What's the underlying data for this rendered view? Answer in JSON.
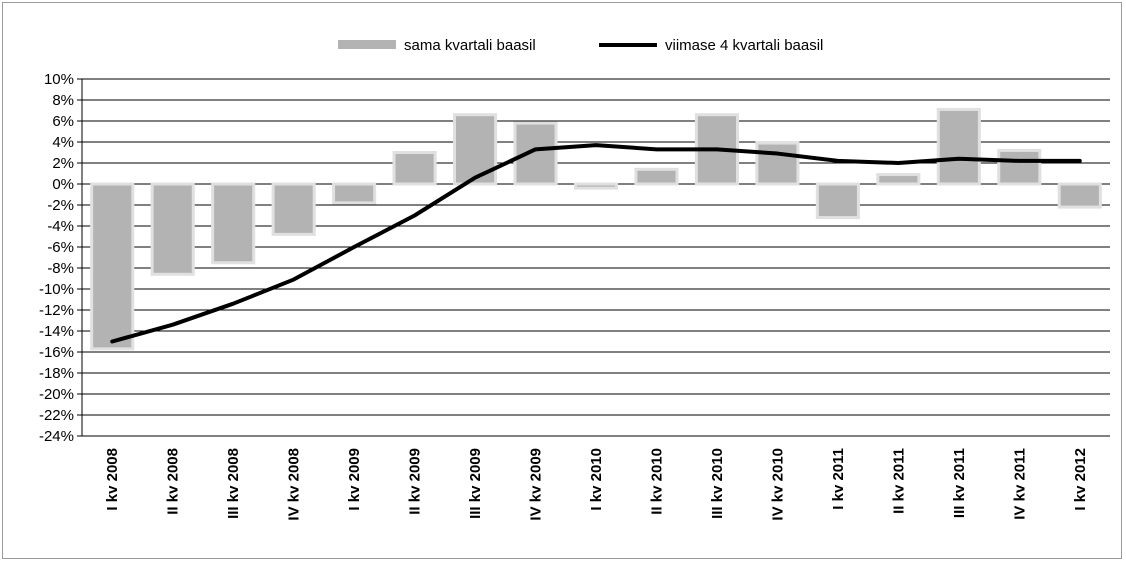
{
  "chart_data": {
    "type": "bar",
    "title": "",
    "xlabel": "",
    "ylabel": "",
    "ylim": [
      -24,
      10
    ],
    "y_ticks": [
      10,
      8,
      6,
      4,
      2,
      0,
      -2,
      -4,
      -6,
      -8,
      -10,
      -12,
      -14,
      -16,
      -18,
      -20,
      -22,
      -24
    ],
    "y_tick_format": "%",
    "grid": true,
    "legend_position": "top",
    "categories": [
      "I kv 2008",
      "II kv 2008",
      "III kv 2008",
      "IV kv 2008",
      "I kv 2009",
      "II kv 2009",
      "III kv 2009",
      "IV kv 2009",
      "I kv 2010",
      "II kv 2010",
      "III kv 2010",
      "IV kv 2010",
      "I kv 2011",
      "II kv 2011",
      "III kv 2011",
      "IV kv 2011",
      "I kv 2012"
    ],
    "series": [
      {
        "name": "sama kvartali baasil",
        "type": "bar",
        "color": "#b3b3b3",
        "values": [
          -15.7,
          -8.6,
          -7.5,
          -4.8,
          -1.8,
          3.0,
          6.6,
          5.8,
          -0.4,
          1.4,
          6.6,
          3.9,
          -3.2,
          0.9,
          7.1,
          3.2,
          -2.2
        ]
      },
      {
        "name": "viimase 4 kvartali baasil",
        "type": "line",
        "color": "#000000",
        "values": [
          -15.0,
          -13.4,
          -11.4,
          -9.1,
          -6.0,
          -3.0,
          0.6,
          3.3,
          3.7,
          3.3,
          3.3,
          2.9,
          2.2,
          2.0,
          2.4,
          2.2,
          2.2
        ]
      }
    ]
  }
}
